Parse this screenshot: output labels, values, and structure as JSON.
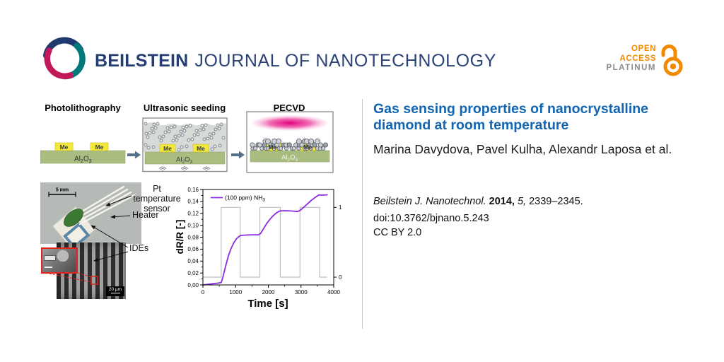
{
  "header": {
    "brand": {
      "name": "BEILSTEIN",
      "journal": "JOURNAL OF NANOTECHNOLOGY"
    },
    "open_access": {
      "line1": "OPEN",
      "line2": "ACCESS",
      "line3": "PLATINUM"
    }
  },
  "article": {
    "title": "Gas sensing properties of nanocrystalline diamond at room temperature",
    "authors": "Marina Davydova, Pavel Kulha, Alexandr Laposa et al.",
    "citation": {
      "journal": "Beilstein J. Nanotechnol.",
      "year": "2014,",
      "volume": "5,",
      "pages": "2339–2345."
    },
    "doi": "doi:10.3762/bjnano.5.243",
    "license": "CC BY 2.0"
  },
  "figure": {
    "process": {
      "steps": [
        "Photolithography",
        "Ultrasonic seeding",
        "PECVD"
      ],
      "electrode_label": "Me",
      "substrate": {
        "pre": "Al",
        "sub1": "2",
        "mid": "O",
        "sub2": "3"
      }
    },
    "device": {
      "scale_bar": "5 mm",
      "labels": {
        "pt": "Pt temperature sensor",
        "heater": "Heater",
        "ides": "IDEs"
      },
      "sem_scale": "20 μm"
    }
  },
  "chart_data": {
    "type": "line",
    "title": "",
    "xlabel": "Time [s]",
    "ylabel": "dR/R [-]",
    "xlim": [
      0,
      4000
    ],
    "ylim": [
      0,
      0.16
    ],
    "grid": false,
    "legend": {
      "text": "(100 ppm) NH",
      "sub": "3",
      "position": "top-left"
    },
    "x_ticks": [
      0,
      1000,
      2000,
      3000,
      4000
    ],
    "x_tick_labels": [
      "0",
      "1000",
      "2000",
      "3000",
      "4000"
    ],
    "y_ticks": [
      0,
      0.02,
      0.04,
      0.06,
      0.08,
      0.1,
      0.12,
      0.14,
      0.16
    ],
    "y_tick_labels": [
      "0,00",
      "0,02",
      "0,04",
      "0,06",
      "0,08",
      "0,10",
      "0,12",
      "0,14",
      "0,16"
    ],
    "right_axis": {
      "ticks": [
        {
          "label": "1",
          "value": 0.13
        },
        {
          "label": "0",
          "value": 0.013
        }
      ]
    },
    "series": [
      {
        "name": "(100 ppm) NH3",
        "color": "#8b2be2",
        "x": [
          0,
          150,
          300,
          450,
          560,
          620,
          700,
          780,
          860,
          940,
          1020,
          1100,
          1150,
          1300,
          1500,
          1700,
          1760,
          1850,
          1950,
          2050,
          2150,
          2250,
          2350,
          2500,
          2700,
          2900,
          2970,
          3080,
          3200,
          3320,
          3440,
          3550,
          3650,
          3800
        ],
        "y": [
          0.0,
          0.001,
          0.002,
          0.003,
          0.004,
          0.015,
          0.033,
          0.049,
          0.061,
          0.07,
          0.077,
          0.081,
          0.083,
          0.0835,
          0.084,
          0.084,
          0.086,
          0.094,
          0.103,
          0.11,
          0.116,
          0.121,
          0.124,
          0.1245,
          0.124,
          0.123,
          0.125,
          0.13,
          0.136,
          0.142,
          0.147,
          0.151,
          0.1505,
          0.151
        ]
      }
    ],
    "gas_pulse": {
      "color": "#bdbdbd",
      "on": 0.13,
      "off": 0.013,
      "x_end": 3800,
      "intervals": [
        [
          560,
          1140
        ],
        [
          1742,
          2366
        ],
        [
          2968,
          3570
        ]
      ]
    }
  },
  "colors": {
    "title_blue": "#1265b2",
    "brand_navy": "#243e73",
    "oa_orange": "#f18a00",
    "curve_purple": "#8b2be2",
    "substrate_green": "#a9bd80",
    "electrode_yellow": "#f3e93e",
    "plasma_magenta": "#e4017d"
  }
}
